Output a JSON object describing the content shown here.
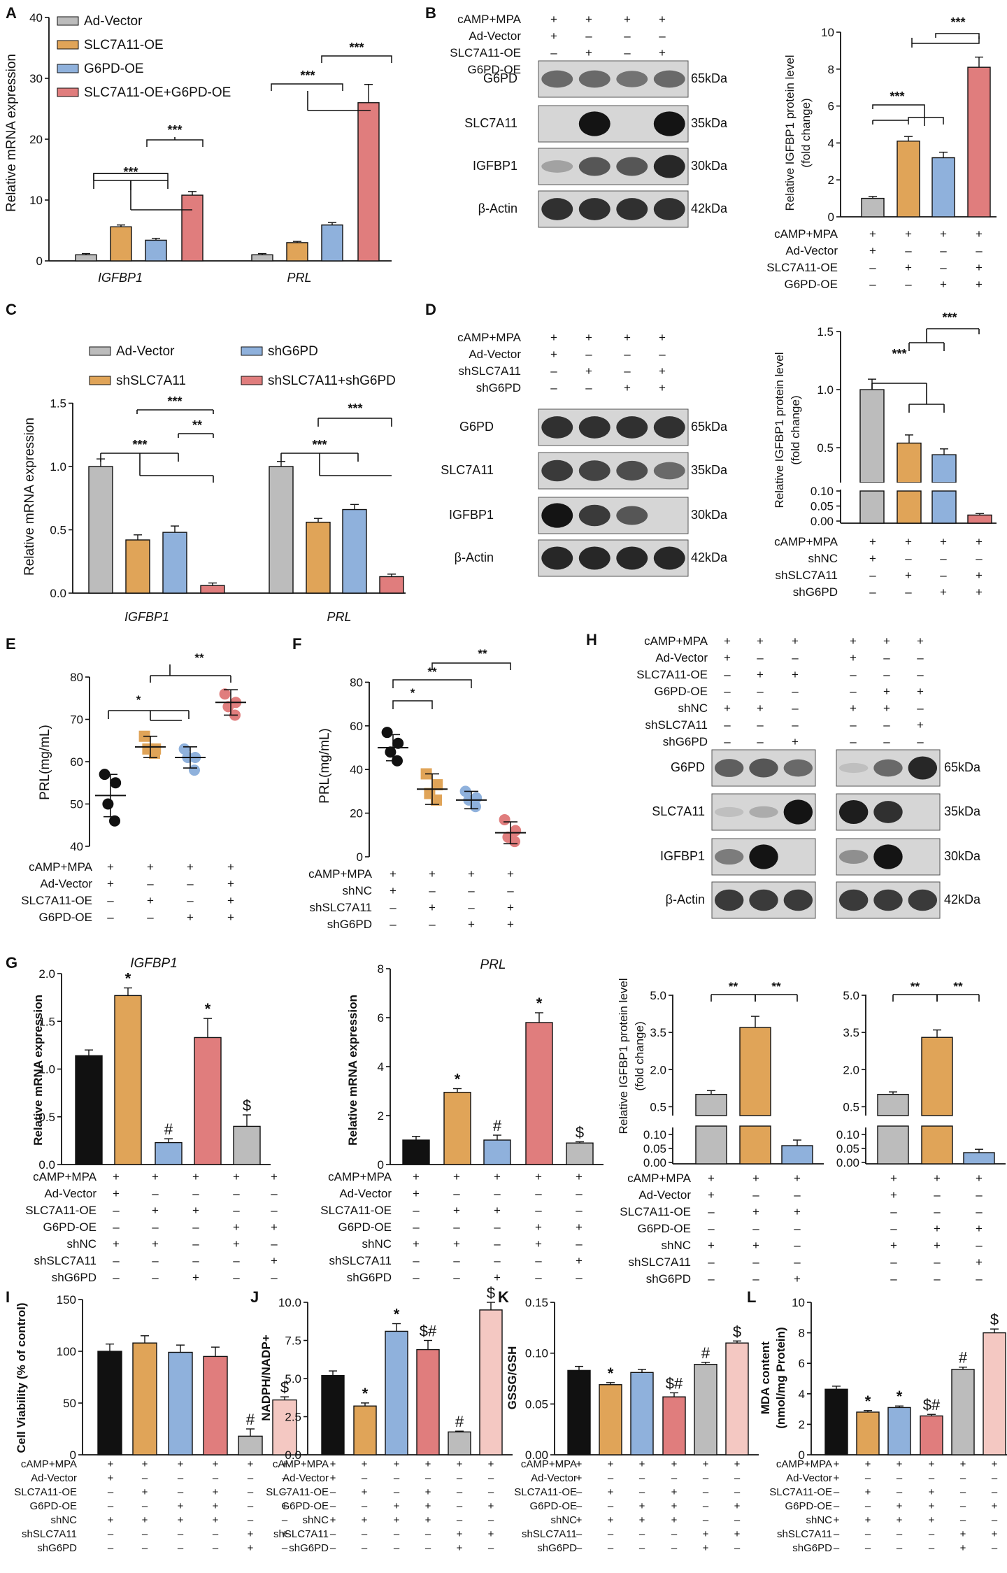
{
  "colors": {
    "grey": "#bcbcbc",
    "orange": "#e0a458",
    "blue": "#8fb1dc",
    "red": "#e07d7d",
    "black": "#111111",
    "pink": "#f4c8c2",
    "axis": "#111111",
    "blot_bg": "#d6d6d6"
  },
  "blot": {
    "B": {
      "rows": [
        "G6PD",
        "SLC7A11",
        "IGFBP1",
        "β-Actin"
      ],
      "kda": [
        "65kDa",
        "35kDa",
        "30kDa",
        "42kDa"
      ]
    },
    "D": {
      "rows": [
        "G6PD",
        "SLC7A11",
        "IGFBP1",
        "β-Actin"
      ],
      "kda": [
        "65kDa",
        "35kDa",
        "30kDa",
        "42kDa"
      ]
    },
    "H": {
      "rows": [
        "G6PD",
        "SLC7A11",
        "IGFBP1",
        "β-Actin"
      ],
      "kda": [
        "65kDa",
        "35kDa",
        "30kDa",
        "42kDa"
      ]
    }
  },
  "matrices": {
    "B_top": {
      "rows": [
        "cAMP+MPA",
        "Ad-Vector",
        "SLC7A11-OE",
        "G6PD-OE"
      ],
      "cells": [
        [
          "+",
          "+",
          "+",
          "+"
        ],
        [
          "+",
          "–",
          "–",
          "–"
        ],
        [
          "–",
          "+",
          "–",
          "+"
        ],
        [
          "–",
          "–",
          "+",
          "+"
        ]
      ]
    },
    "B_bar": {
      "rows": [
        "cAMP+MPA",
        "Ad-Vector",
        "SLC7A11-OE",
        "G6PD-OE"
      ],
      "cells": [
        [
          "+",
          "+",
          "+",
          "+"
        ],
        [
          "+",
          "–",
          "–",
          "–"
        ],
        [
          "–",
          "+",
          "–",
          "+"
        ],
        [
          "–",
          "–",
          "+",
          "+"
        ]
      ]
    },
    "D_top": {
      "rows": [
        "cAMP+MPA",
        "Ad-Vector",
        "shSLC7A11",
        "shG6PD"
      ],
      "cells": [
        [
          "+",
          "+",
          "+",
          "+"
        ],
        [
          "+",
          "–",
          "–",
          "–"
        ],
        [
          "–",
          "+",
          "–",
          "+"
        ],
        [
          "–",
          "–",
          "+",
          "+"
        ]
      ]
    },
    "D_bar": {
      "rows": [
        "cAMP+MPA",
        "shNC",
        "shSLC7A11",
        "shG6PD"
      ],
      "cells": [
        [
          "+",
          "+",
          "+",
          "+"
        ],
        [
          "+",
          "–",
          "–",
          "–"
        ],
        [
          "–",
          "+",
          "–",
          "+"
        ],
        [
          "–",
          "–",
          "+",
          "+"
        ]
      ]
    },
    "E": {
      "rows": [
        "cAMP+MPA",
        "Ad-Vector",
        "SLC7A11-OE",
        "G6PD-OE"
      ],
      "cells": [
        [
          "+",
          "+",
          "+",
          "+"
        ],
        [
          "+",
          "–",
          "–",
          "+"
        ],
        [
          "–",
          "+",
          "–",
          "+"
        ],
        [
          "–",
          "–",
          "+",
          "+"
        ]
      ]
    },
    "F": {
      "rows": [
        "cAMP+MPA",
        "shNC",
        "shSLC7A11",
        "shG6PD"
      ],
      "cells": [
        [
          "+",
          "+",
          "+",
          "+"
        ],
        [
          "+",
          "–",
          "–",
          "–"
        ],
        [
          "–",
          "+",
          "–",
          "+"
        ],
        [
          "–",
          "–",
          "+",
          "+"
        ]
      ]
    },
    "H": {
      "rows": [
        "cAMP+MPA",
        "Ad-Vector",
        "SLC7A11-OE",
        "G6PD-OE",
        "shNC",
        "shSLC7A11",
        "shG6PD"
      ],
      "cells": [
        [
          "+",
          "+",
          "+",
          "+",
          "+",
          "+"
        ],
        [
          "+",
          "–",
          "–",
          "+",
          "–",
          "–"
        ],
        [
          "–",
          "+",
          "+",
          "–",
          "–",
          "–"
        ],
        [
          "–",
          "–",
          "–",
          "–",
          "+",
          "+"
        ],
        [
          "+",
          "+",
          "–",
          "+",
          "+",
          "–"
        ],
        [
          "–",
          "–",
          "–",
          "–",
          "–",
          "+"
        ],
        [
          "–",
          "–",
          "+",
          "–",
          "–",
          "–"
        ]
      ]
    },
    "G_left": {
      "rows": [
        "cAMP+MPA",
        "Ad-Vector",
        "SLC7A11-OE",
        "G6PD-OE",
        "shNC",
        "shSLC7A11",
        "shG6PD"
      ],
      "cells": [
        [
          "+",
          "+",
          "+",
          "+",
          "+"
        ],
        [
          "+",
          "–",
          "–",
          "–",
          "–"
        ],
        [
          "–",
          "+",
          "+",
          "–",
          "–"
        ],
        [
          "–",
          "–",
          "–",
          "+",
          "+"
        ],
        [
          "+",
          "+",
          "–",
          "+",
          "–"
        ],
        [
          "–",
          "–",
          "–",
          "–",
          "+"
        ],
        [
          "–",
          "–",
          "+",
          "–",
          "–"
        ]
      ]
    },
    "G_mid": {
      "rows": [
        "cAMP+MPA",
        "Ad-Vector",
        "SLC7A11-OE",
        "G6PD-OE",
        "shNC",
        "shSLC7A11",
        "shG6PD"
      ],
      "cells": [
        [
          "+",
          "+",
          "+",
          "+",
          "+"
        ],
        [
          "+",
          "–",
          "–",
          "–",
          "–"
        ],
        [
          "–",
          "+",
          "+",
          "–",
          "–"
        ],
        [
          "–",
          "–",
          "–",
          "+",
          "+"
        ],
        [
          "+",
          "+",
          "–",
          "+",
          "–"
        ],
        [
          "–",
          "–",
          "–",
          "–",
          "+"
        ],
        [
          "–",
          "–",
          "+",
          "–",
          "–"
        ]
      ]
    },
    "G_right": {
      "rows": [
        "cAMP+MPA",
        "Ad-Vector",
        "SLC7A11-OE",
        "G6PD-OE",
        "shNC",
        "shSLC7A11",
        "shG6PD"
      ],
      "cells": [
        [
          "+",
          "+",
          "+",
          "+",
          "+",
          "+"
        ],
        [
          "+",
          "–",
          "–",
          "+",
          "–",
          "–"
        ],
        [
          "–",
          "+",
          "+",
          "–",
          "–",
          "–"
        ],
        [
          "–",
          "–",
          "–",
          "–",
          "+",
          "+"
        ],
        [
          "+",
          "+",
          "–",
          "+",
          "+",
          "–"
        ],
        [
          "–",
          "–",
          "–",
          "–",
          "–",
          "+"
        ],
        [
          "–",
          "–",
          "+",
          "–",
          "–",
          "–"
        ]
      ]
    },
    "IJKL": {
      "rows": [
        "cAMP+MPA",
        "Ad-Vector",
        "SLC7A11-OE",
        "G6PD-OE",
        "shNC",
        "shSLC7A11",
        "shG6PD"
      ],
      "cells": [
        [
          "+",
          "+",
          "+",
          "+",
          "+",
          "+"
        ],
        [
          "+",
          "–",
          "–",
          "–",
          "–",
          "–"
        ],
        [
          "–",
          "+",
          "–",
          "+",
          "–",
          "–"
        ],
        [
          "–",
          "–",
          "+",
          "+",
          "–",
          "+"
        ],
        [
          "+",
          "+",
          "+",
          "+",
          "–",
          "–"
        ],
        [
          "–",
          "–",
          "–",
          "–",
          "+",
          "+"
        ],
        [
          "–",
          "–",
          "–",
          "–",
          "+",
          "–"
        ]
      ]
    }
  },
  "chart_data": [
    {
      "panel": "A",
      "type": "bar",
      "ylabel": "Relative mRNA expression",
      "categories": [
        "IGFBP1",
        "PRL"
      ],
      "ylim": [
        0,
        40
      ],
      "yticks": [
        "0",
        "10",
        "20",
        "30",
        "40"
      ],
      "legend": [
        "Ad-Vector",
        "SLC7A11-OE",
        "G6PD-OE",
        "SLC7A11-OE+G6PD-OE"
      ],
      "series": [
        {
          "name": "Ad-Vector",
          "values": [
            1.0,
            1.0
          ],
          "err": [
            0.2,
            0.2
          ]
        },
        {
          "name": "SLC7A11-OE",
          "values": [
            5.6,
            3.0
          ],
          "err": [
            0.3,
            0.2
          ]
        },
        {
          "name": "G6PD-OE",
          "values": [
            3.4,
            5.9
          ],
          "err": [
            0.3,
            0.4
          ]
        },
        {
          "name": "SLC7A11-OE+G6PD-OE",
          "values": [
            10.8,
            26.0
          ],
          "err": [
            0.6,
            3.0
          ]
        }
      ],
      "sig": [
        "***",
        "***",
        "***",
        "***"
      ]
    },
    {
      "panel": "B",
      "type": "bar",
      "ylabel": "Relative IGFBP1 protein level (fold change)",
      "ylim": [
        0,
        10
      ],
      "yticks": [
        "0",
        "2",
        "4",
        "6",
        "8",
        "10"
      ],
      "values": [
        1.0,
        4.1,
        3.2,
        8.1
      ],
      "err": [
        0.1,
        0.25,
        0.3,
        0.55
      ],
      "sig": [
        "***",
        "***"
      ]
    },
    {
      "panel": "C",
      "type": "bar",
      "ylabel": "Relative mRNA expression",
      "categories": [
        "IGFBP1",
        "PRL"
      ],
      "ylim": [
        0,
        1.5
      ],
      "yticks": [
        "0.0",
        "0.5",
        "1.0",
        "1.5"
      ],
      "legend": [
        "Ad-Vector",
        "shSLC7A11",
        "shG6PD",
        "shSLC7A11+shG6PD"
      ],
      "series": [
        {
          "name": "Ad-Vector",
          "values": [
            1.0,
            1.0
          ],
          "err": [
            0.06,
            0.04
          ]
        },
        {
          "name": "shSLC7A11",
          "values": [
            0.42,
            0.56
          ],
          "err": [
            0.04,
            0.03
          ]
        },
        {
          "name": "shG6PD",
          "values": [
            0.48,
            0.66
          ],
          "err": [
            0.05,
            0.04
          ]
        },
        {
          "name": "shSLC7A11+shG6PD",
          "values": [
            0.06,
            0.13
          ],
          "err": [
            0.02,
            0.02
          ]
        }
      ],
      "sig": [
        "***",
        "***",
        "**",
        "***",
        "***"
      ]
    },
    {
      "panel": "D",
      "type": "bar",
      "ylabel": "Relative IGFBP1 protein level (fold change)",
      "yticks": [
        "0.00",
        "0.05",
        "0.10",
        "0.5",
        "1.0",
        "1.5"
      ],
      "values": [
        1.0,
        0.54,
        0.44,
        0.02
      ],
      "err": [
        0.09,
        0.07,
        0.05,
        0.005
      ],
      "sig": [
        "***",
        "***"
      ]
    },
    {
      "panel": "E",
      "type": "scatter",
      "ylabel": "PRL(mg/mL)",
      "ylim": [
        40,
        80
      ],
      "yticks": [
        "40",
        "50",
        "60",
        "70",
        "80"
      ],
      "groups": [
        {
          "points": [
            57,
            55,
            50,
            46
          ],
          "mean": 52,
          "sd": 5
        },
        {
          "points": [
            66,
            63,
            63,
            62
          ],
          "mean": 63.5,
          "sd": 2.5
        },
        {
          "points": [
            63,
            61,
            61,
            58
          ],
          "mean": 61,
          "sd": 2.5
        },
        {
          "points": [
            76,
            74,
            73,
            71
          ],
          "mean": 74,
          "sd": 3
        }
      ],
      "sig": [
        "*",
        "**"
      ]
    },
    {
      "panel": "F",
      "type": "scatter",
      "ylabel": "PRL(mg/mL)",
      "ylim": [
        0,
        80
      ],
      "yticks": [
        "0",
        "20",
        "40",
        "60",
        "80"
      ],
      "groups": [
        {
          "points": [
            57,
            52,
            48,
            44
          ],
          "mean": 50,
          "sd": 6
        },
        {
          "points": [
            38,
            33,
            29,
            26
          ],
          "mean": 31,
          "sd": 7
        },
        {
          "points": [
            30,
            27,
            26,
            23
          ],
          "mean": 26,
          "sd": 4
        },
        {
          "points": [
            17,
            12,
            9,
            7
          ],
          "mean": 11,
          "sd": 5
        }
      ],
      "sig": [
        "*",
        "**",
        "**"
      ]
    },
    {
      "panel": "G1",
      "type": "bar",
      "title": "IGFBP1",
      "ylabel": "Relative mRNA expression",
      "ylim": [
        0,
        2.0
      ],
      "yticks": [
        "0.0",
        "0.5",
        "1.0",
        "1.5",
        "2.0"
      ],
      "values": [
        1.14,
        1.77,
        0.23,
        1.33,
        0.4
      ],
      "err": [
        0.06,
        0.08,
        0.04,
        0.2,
        0.12
      ],
      "marks": [
        "",
        "*",
        "#",
        "*",
        "$"
      ]
    },
    {
      "panel": "G2",
      "type": "bar",
      "title": "PRL",
      "ylabel": "Relative mRNA expression",
      "ylim": [
        0,
        8
      ],
      "yticks": [
        "0",
        "2",
        "4",
        "6",
        "8"
      ],
      "values": [
        1.0,
        2.95,
        1.0,
        5.8,
        0.88
      ],
      "err": [
        0.15,
        0.15,
        0.2,
        0.4,
        0.05
      ],
      "marks": [
        "",
        "*",
        "#",
        "*",
        "$"
      ]
    },
    {
      "panel": "G3",
      "type": "bar",
      "ylabel": "Relative IGFBP1 protein level (fold change)",
      "yticks": [
        "0.00",
        "0.05",
        "0.10",
        "0.5",
        "2.0",
        "3.5",
        "5.0"
      ],
      "values": [
        1.0,
        3.7,
        0.06
      ],
      "err": [
        0.15,
        0.45,
        0.02
      ],
      "sig": [
        "**",
        "**"
      ]
    },
    {
      "panel": "G4",
      "type": "bar",
      "yticks": [
        "0.00",
        "0.05",
        "0.10",
        "0.5",
        "2.0",
        "3.5",
        "5.0"
      ],
      "values": [
        1.0,
        3.3,
        0.035
      ],
      "err": [
        0.1,
        0.3,
        0.012
      ],
      "sig": [
        "**",
        "**"
      ]
    },
    {
      "panel": "I",
      "type": "bar",
      "ylabel": "Cell Viability (% of control)",
      "ylim": [
        0,
        150
      ],
      "yticks": [
        "0",
        "50",
        "100",
        "150"
      ],
      "values": [
        100,
        108,
        99,
        95,
        18,
        53
      ],
      "err": [
        7,
        7,
        7,
        9,
        7,
        3
      ],
      "marks": [
        "",
        "",
        "",
        "",
        "#",
        "$"
      ]
    },
    {
      "panel": "J",
      "type": "bar",
      "ylabel": "NADPH/NADP+",
      "ylim": [
        0,
        10
      ],
      "yticks": [
        "0.0",
        "2.5",
        "5.0",
        "7.5",
        "10.0"
      ],
      "values": [
        5.2,
        3.2,
        8.1,
        6.9,
        1.5,
        9.5
      ],
      "err": [
        0.3,
        0.2,
        0.5,
        0.6,
        0.05,
        0.5
      ],
      "marks": [
        "",
        "*",
        "*",
        "$#",
        "#",
        "$"
      ]
    },
    {
      "panel": "K",
      "type": "bar",
      "ylabel": "GSSG/GSH",
      "ylim": [
        0,
        0.15
      ],
      "yticks": [
        "0.00",
        "0.05",
        "0.10",
        "0.15"
      ],
      "values": [
        0.083,
        0.069,
        0.081,
        0.057,
        0.089,
        0.11
      ],
      "err": [
        0.004,
        0.002,
        0.003,
        0.004,
        0.002,
        0.002
      ],
      "marks": [
        "",
        "*",
        "",
        "$#",
        "#",
        "$"
      ]
    },
    {
      "panel": "L",
      "type": "bar",
      "ylabel": "MDA content (nmol/mg Protein)",
      "ylim": [
        0,
        10
      ],
      "yticks": [
        "0",
        "2",
        "4",
        "6",
        "8",
        "10"
      ],
      "values": [
        4.3,
        2.8,
        3.1,
        2.55,
        5.6,
        8.0
      ],
      "err": [
        0.2,
        0.1,
        0.1,
        0.1,
        0.15,
        0.25
      ],
      "marks": [
        "",
        "*",
        "*",
        "$#",
        "#",
        "$"
      ]
    }
  ],
  "panel_letters": {
    "A": "A",
    "B": "B",
    "C": "C",
    "D": "D",
    "E": "E",
    "F": "F",
    "G": "G",
    "H": "H",
    "I": "I",
    "J": "J",
    "K": "K",
    "L": "L"
  }
}
